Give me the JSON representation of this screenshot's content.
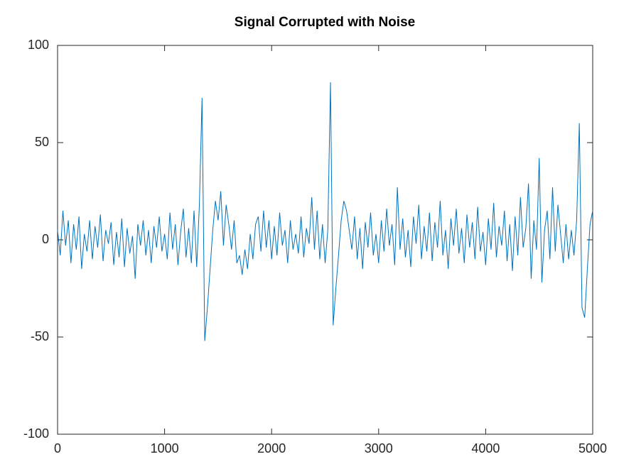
{
  "chart_data": {
    "type": "line",
    "title": "Signal Corrupted with Noise",
    "color": "#0072bd",
    "x": [
      0,
      25,
      50,
      75,
      100,
      125,
      150,
      175,
      200,
      225,
      250,
      275,
      300,
      325,
      350,
      375,
      400,
      425,
      450,
      475,
      500,
      525,
      550,
      575,
      600,
      625,
      650,
      675,
      700,
      725,
      750,
      775,
      800,
      825,
      850,
      875,
      900,
      925,
      950,
      975,
      1000,
      1025,
      1050,
      1075,
      1100,
      1125,
      1150,
      1175,
      1200,
      1225,
      1250,
      1275,
      1300,
      1325,
      1350,
      1375,
      1400,
      1425,
      1450,
      1475,
      1500,
      1525,
      1550,
      1575,
      1600,
      1625,
      1650,
      1675,
      1700,
      1725,
      1750,
      1775,
      1800,
      1825,
      1850,
      1875,
      1900,
      1925,
      1950,
      1975,
      2000,
      2025,
      2050,
      2075,
      2100,
      2125,
      2150,
      2175,
      2200,
      2225,
      2250,
      2275,
      2300,
      2325,
      2350,
      2375,
      2400,
      2425,
      2450,
      2475,
      2500,
      2525,
      2550,
      2575,
      2600,
      2625,
      2650,
      2675,
      2700,
      2725,
      2750,
      2775,
      2800,
      2825,
      2850,
      2875,
      2900,
      2925,
      2950,
      2975,
      3000,
      3025,
      3050,
      3075,
      3100,
      3125,
      3150,
      3175,
      3200,
      3225,
      3250,
      3275,
      3300,
      3325,
      3350,
      3375,
      3400,
      3425,
      3450,
      3475,
      3500,
      3525,
      3550,
      3575,
      3600,
      3625,
      3650,
      3675,
      3700,
      3725,
      3750,
      3775,
      3800,
      3825,
      3850,
      3875,
      3900,
      3925,
      3950,
      3975,
      4000,
      4025,
      4050,
      4075,
      4100,
      4125,
      4150,
      4175,
      4200,
      4225,
      4250,
      4275,
      4300,
      4325,
      4350,
      4375,
      4400,
      4425,
      4450,
      4475,
      4500,
      4525,
      4550,
      4575,
      4600,
      4625,
      4650,
      4675,
      4700,
      4725,
      4750,
      4775,
      4800,
      4825,
      4850,
      4875,
      4900,
      4925,
      4950,
      4975,
      5000
    ],
    "values": [
      5,
      -8,
      15,
      -3,
      10,
      -12,
      8,
      -5,
      12,
      -15,
      3,
      -6,
      10,
      -10,
      7,
      -4,
      13,
      -11,
      5,
      -2,
      9,
      -13,
      4,
      -9,
      11,
      -14,
      6,
      -7,
      2,
      -20,
      8,
      -3,
      10,
      -8,
      5,
      -12,
      7,
      -4,
      12,
      -6,
      3,
      -10,
      14,
      -5,
      8,
      -13,
      4,
      16,
      -9,
      6,
      -12,
      15,
      -14,
      18,
      73,
      -52,
      -35,
      -15,
      5,
      20,
      10,
      25,
      -3,
      18,
      8,
      -5,
      10,
      -12,
      -8,
      -18,
      -5,
      -15,
      3,
      -10,
      8,
      12,
      -6,
      15,
      -4,
      10,
      -10,
      7,
      -8,
      14,
      -3,
      5,
      -12,
      10,
      -5,
      3,
      -7,
      12,
      -9,
      6,
      -2,
      22,
      -5,
      15,
      -10,
      8,
      -12,
      5,
      81,
      -44,
      -25,
      -8,
      10,
      20,
      15,
      5,
      -5,
      12,
      -10,
      6,
      -15,
      9,
      -4,
      14,
      -8,
      3,
      -12,
      10,
      -6,
      16,
      -3,
      8,
      -13,
      27,
      -5,
      11,
      -9,
      5,
      -14,
      12,
      -2,
      18,
      -10,
      7,
      -6,
      14,
      -11,
      9,
      -4,
      20,
      -8,
      5,
      -15,
      11,
      -3,
      16,
      -7,
      6,
      -12,
      13,
      -4,
      9,
      -10,
      17,
      -6,
      4,
      -13,
      11,
      -5,
      19,
      -9,
      7,
      -3,
      15,
      -11,
      8,
      -16,
      12,
      -8,
      22,
      -4,
      6,
      29,
      -20,
      10,
      -5,
      42,
      -22,
      5,
      15,
      -10,
      27,
      -6,
      18,
      3,
      -12,
      8,
      -10,
      5,
      -8,
      10,
      60,
      -35,
      -40,
      -15,
      8,
      15
    ],
    "xlim": [
      0,
      5000
    ],
    "xticks": [
      0,
      1000,
      2000,
      3000,
      4000,
      5000
    ],
    "ylim": [
      -100,
      100
    ],
    "yticks": [
      -100,
      -50,
      0,
      50,
      100
    ]
  }
}
